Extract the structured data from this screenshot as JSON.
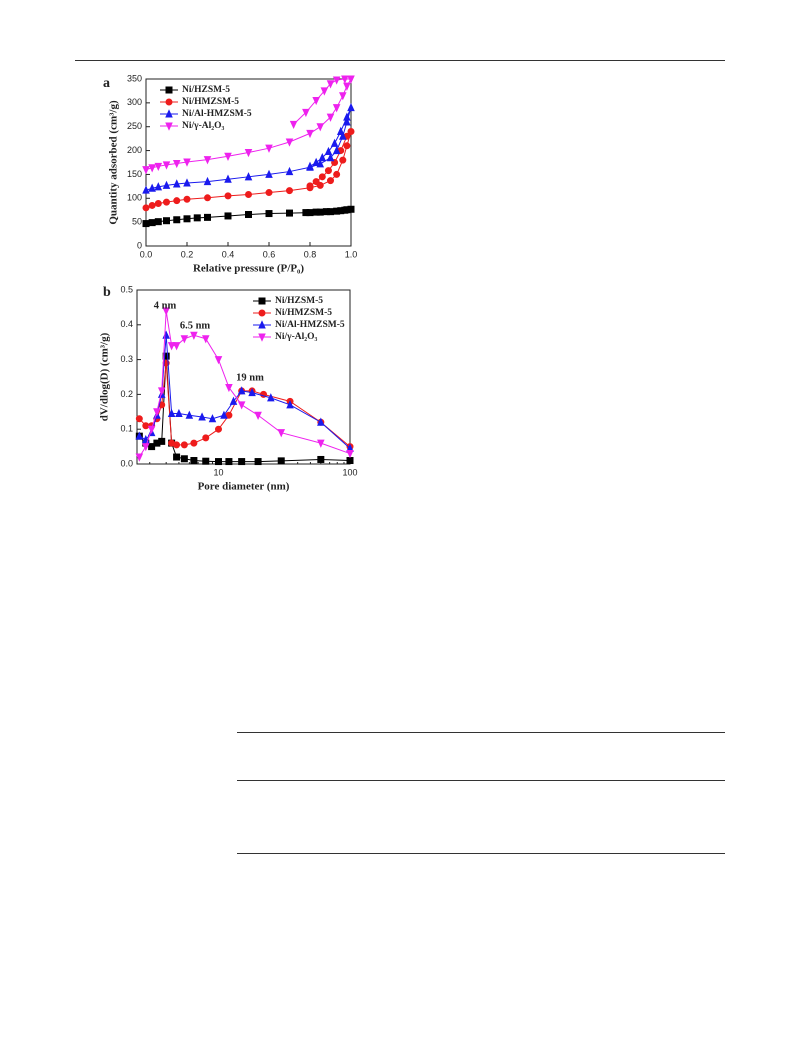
{
  "chart_data": [
    {
      "type": "line",
      "panel": "a",
      "xlabel": "Relative pressure (P/P₀)",
      "ylabel": "Quantity adsorbed (cm³/g)",
      "xlim": [
        0,
        1
      ],
      "ylim": [
        0,
        350
      ],
      "xticks": [
        {
          "value": 0,
          "label": "0.0"
        },
        {
          "value": 0.2,
          "label": "0.2"
        },
        {
          "value": 0.4,
          "label": "0.4"
        },
        {
          "value": 0.6,
          "label": "0.6"
        },
        {
          "value": 0.8,
          "label": "0.8"
        },
        {
          "value": 1,
          "label": "1.0"
        }
      ],
      "yticks": [
        0,
        50,
        100,
        150,
        200,
        250,
        300,
        350
      ],
      "legend": "upper left",
      "series": [
        {
          "name": "Ni/HZSM-5",
          "color": "#000000",
          "marker": "square",
          "x": [
            0.0,
            0.03,
            0.06,
            0.1,
            0.15,
            0.2,
            0.25,
            0.3,
            0.4,
            0.5,
            0.6,
            0.7,
            0.8,
            0.85,
            0.9,
            0.95,
            0.98,
            1.0,
            0.97,
            0.93,
            0.88,
            0.83,
            0.78
          ],
          "values": [
            47,
            49,
            51,
            53,
            55,
            57,
            59,
            60,
            63,
            66,
            68,
            69,
            70,
            71,
            72,
            74,
            76,
            77,
            75,
            73,
            72,
            71,
            70
          ]
        },
        {
          "name": "Ni/HMZSM-5",
          "color": "#ee1c1c",
          "marker": "circle",
          "x": [
            0.0,
            0.03,
            0.06,
            0.1,
            0.15,
            0.2,
            0.3,
            0.4,
            0.5,
            0.6,
            0.7,
            0.8,
            0.85,
            0.9,
            0.93,
            0.96,
            0.98,
            1.0,
            0.98,
            0.95,
            0.92,
            0.89,
            0.86,
            0.83,
            0.8
          ],
          "values": [
            80,
            85,
            89,
            92,
            95,
            98,
            101,
            105,
            108,
            112,
            116,
            122,
            127,
            137,
            150,
            180,
            210,
            240,
            230,
            200,
            175,
            158,
            145,
            135,
            126
          ]
        },
        {
          "name": "Ni/Al-HMZSM-5",
          "color": "#1a1aee",
          "marker": "triangle",
          "x": [
            0.0,
            0.03,
            0.06,
            0.1,
            0.15,
            0.2,
            0.3,
            0.4,
            0.5,
            0.6,
            0.7,
            0.8,
            0.85,
            0.9,
            0.93,
            0.96,
            0.98,
            1.0,
            0.98,
            0.95,
            0.92,
            0.89,
            0.86,
            0.83,
            0.8
          ],
          "values": [
            117,
            121,
            124,
            127,
            130,
            132,
            135,
            140,
            145,
            150,
            156,
            165,
            172,
            185,
            200,
            230,
            260,
            290,
            270,
            240,
            215,
            198,
            185,
            175,
            167
          ]
        },
        {
          "name": "Ni/γ-Al₂O₃",
          "color": "#ee22ee",
          "marker": "triangle-down",
          "x": [
            0.0,
            0.03,
            0.06,
            0.1,
            0.15,
            0.2,
            0.3,
            0.4,
            0.5,
            0.6,
            0.7,
            0.8,
            0.85,
            0.9,
            0.93,
            0.96,
            0.98,
            1.0,
            0.97,
            0.93,
            0.9,
            0.87,
            0.83,
            0.78,
            0.72
          ],
          "values": [
            160,
            164,
            167,
            170,
            173,
            176,
            181,
            188,
            196,
            205,
            218,
            236,
            250,
            270,
            290,
            315,
            335,
            350,
            350,
            348,
            340,
            325,
            305,
            280,
            255
          ]
        }
      ]
    },
    {
      "type": "line",
      "panel": "b",
      "xlabel": "Pore diameter (nm)",
      "ylabel": "dV/dlog(D)  (cm³/g)",
      "xscale": "log",
      "xlim": [
        2.4,
        100
      ],
      "ylim": [
        0,
        0.5
      ],
      "xticks": [
        10,
        100
      ],
      "yticks": [
        {
          "value": 0,
          "label": "0.0"
        },
        0.1,
        0.2,
        0.3,
        0.4,
        0.5
      ],
      "legend": "upper right",
      "annotations": [
        "4 nm",
        "6.5 nm",
        "19 nm"
      ],
      "series": [
        {
          "name": "Ni/HZSM-5",
          "color": "#000000",
          "marker": "square",
          "x": [
            2.5,
            2.8,
            3.1,
            3.4,
            3.7,
            4.0,
            4.4,
            4.8,
            5.5,
            6.5,
            8,
            10,
            12,
            15,
            20,
            30,
            60,
            100
          ],
          "values": [
            0.08,
            0.06,
            0.05,
            0.06,
            0.065,
            0.31,
            0.06,
            0.02,
            0.015,
            0.01,
            0.008,
            0.007,
            0.007,
            0.007,
            0.007,
            0.009,
            0.013,
            0.01
          ]
        },
        {
          "name": "Ni/HMZSM-5",
          "color": "#ee1c1c",
          "marker": "circle",
          "x": [
            2.5,
            2.8,
            3.1,
            3.4,
            3.7,
            4.0,
            4.4,
            4.8,
            5.5,
            6.5,
            8,
            10,
            12,
            15,
            18,
            22,
            35,
            60,
            100
          ],
          "values": [
            0.13,
            0.11,
            0.11,
            0.13,
            0.17,
            0.29,
            0.06,
            0.055,
            0.055,
            0.06,
            0.075,
            0.1,
            0.14,
            0.21,
            0.21,
            0.2,
            0.18,
            0.12,
            0.05
          ]
        },
        {
          "name": "Ni/Al-HMZSM-5",
          "color": "#1a1aee",
          "marker": "triangle",
          "x": [
            2.5,
            2.8,
            3.1,
            3.4,
            3.7,
            4.0,
            4.4,
            5,
            6,
            7.5,
            9,
            11,
            13,
            15,
            18,
            25,
            35,
            60,
            100
          ],
          "values": [
            0.08,
            0.07,
            0.09,
            0.14,
            0.2,
            0.37,
            0.145,
            0.145,
            0.14,
            0.135,
            0.13,
            0.14,
            0.18,
            0.21,
            0.205,
            0.19,
            0.17,
            0.12,
            0.045
          ]
        },
        {
          "name": "Ni/γ-Al₂O₃",
          "color": "#ee22ee",
          "marker": "triangle-down",
          "x": [
            2.5,
            2.8,
            3.1,
            3.4,
            3.7,
            4.0,
            4.4,
            4.8,
            5.5,
            6.5,
            8,
            10,
            12,
            15,
            20,
            30,
            60,
            100
          ],
          "values": [
            0.02,
            0.05,
            0.1,
            0.15,
            0.21,
            0.44,
            0.34,
            0.34,
            0.36,
            0.37,
            0.36,
            0.3,
            0.22,
            0.17,
            0.14,
            0.09,
            0.06,
            0.03
          ]
        }
      ]
    }
  ]
}
